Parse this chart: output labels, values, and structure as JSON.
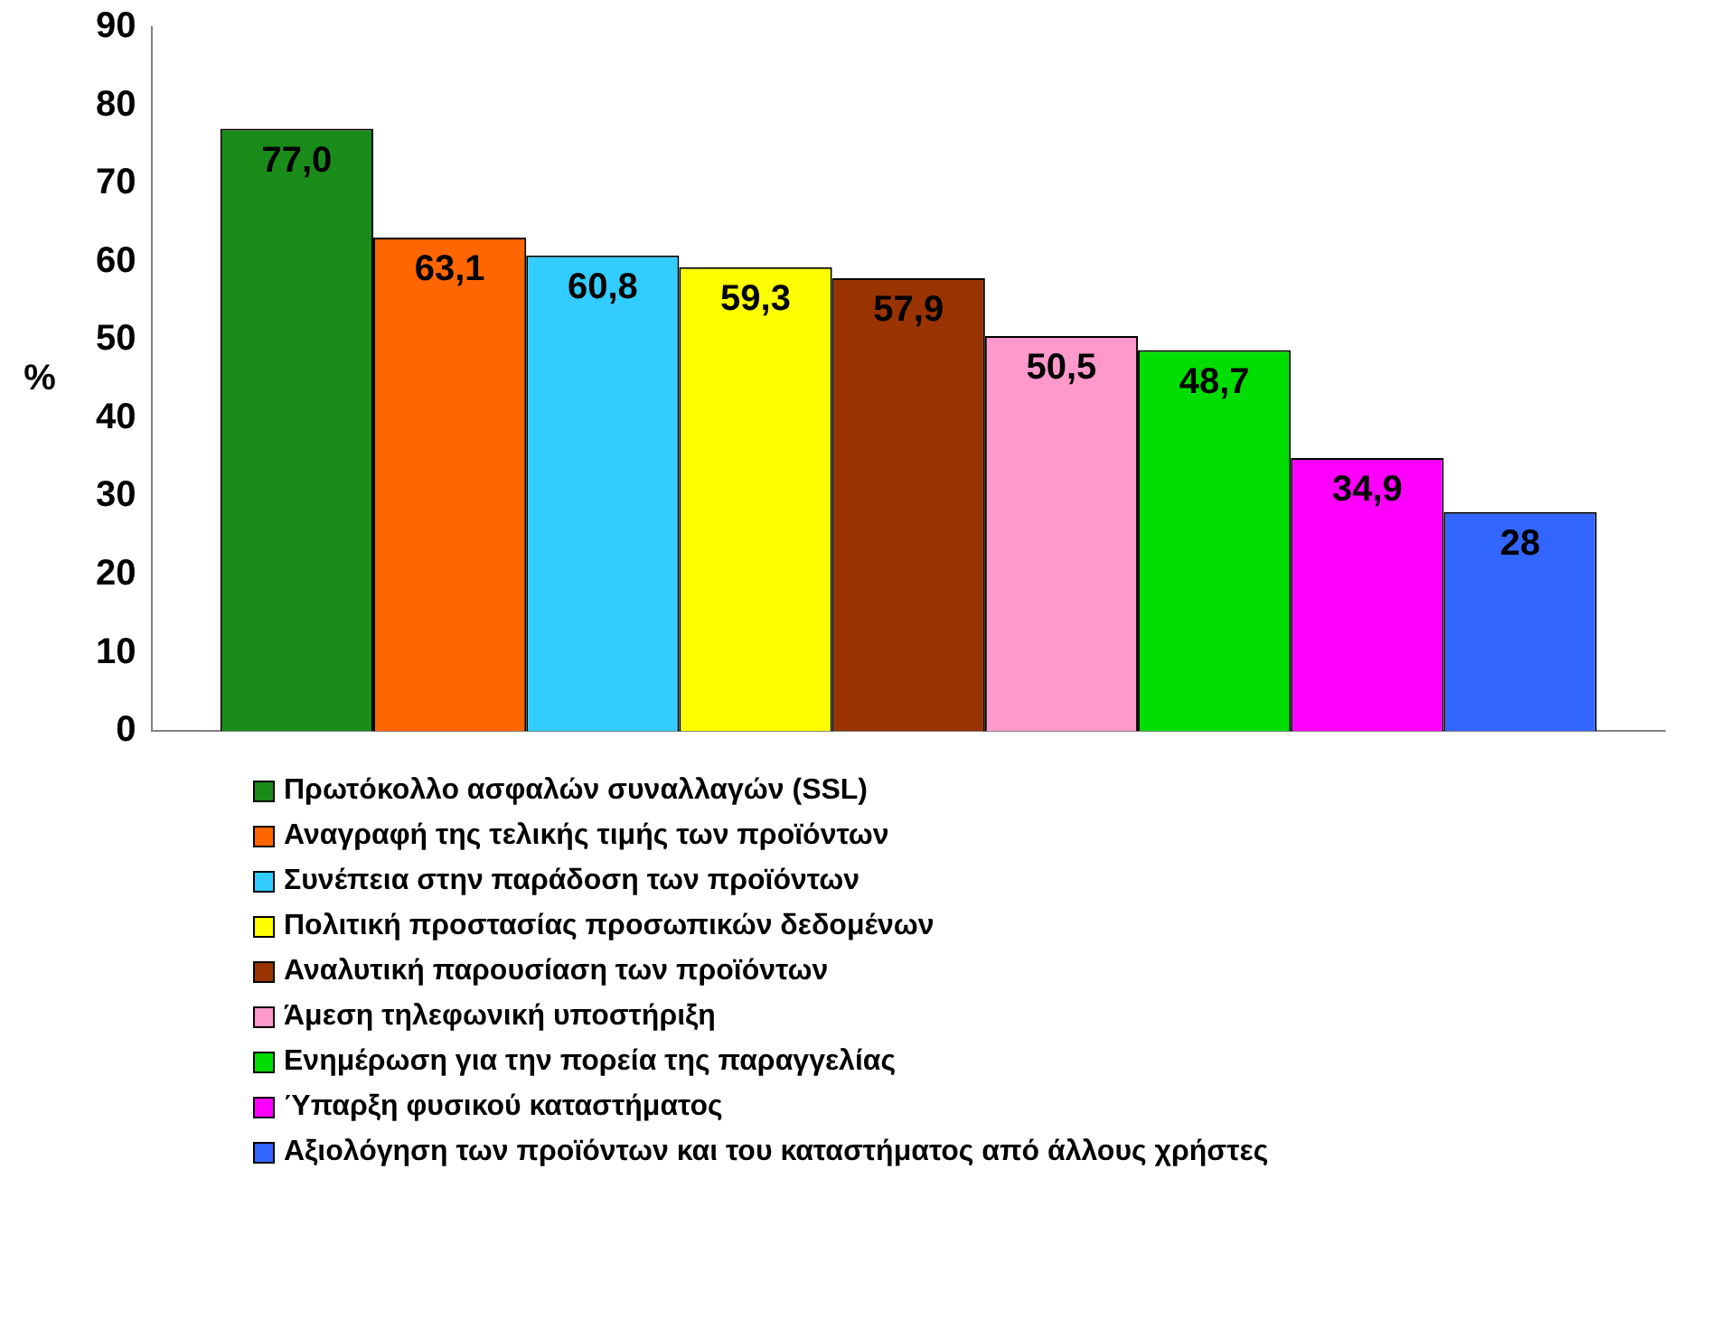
{
  "chart_data": {
    "type": "bar",
    "ylabel": "%",
    "categories": [
      null
    ],
    "series": [
      {
        "name": "Πρωτόκολλο ασφαλών συναλλαγών (SSL)",
        "color": "#1a8c1a",
        "values": [
          77.0
        ],
        "value_labels": [
          "77,0"
        ]
      },
      {
        "name": "Αναγραφή της τελικής τιμής των προϊόντων",
        "color": "#ff6600",
        "values": [
          63.1
        ],
        "value_labels": [
          "63,1"
        ]
      },
      {
        "name": "Συνέπεια στην παράδοση των προϊόντων",
        "color": "#33ccff",
        "values": [
          60.8
        ],
        "value_labels": [
          "60,8"
        ]
      },
      {
        "name": "Πολιτική προστασίας προσωπικών δεδομένων",
        "color": "#ffff00",
        "values": [
          59.3
        ],
        "value_labels": [
          "59,3"
        ]
      },
      {
        "name": "Αναλυτική παρουσίαση των προϊόντων",
        "color": "#993300",
        "values": [
          57.9
        ],
        "value_labels": [
          "57,9"
        ]
      },
      {
        "name": "Άμεση τηλεφωνική υποστήριξη",
        "color": "#ff99cc",
        "values": [
          50.5
        ],
        "value_labels": [
          "50,5"
        ]
      },
      {
        "name": "Ενημέρωση για την πορεία της παραγγελίας",
        "color": "#00dd00",
        "values": [
          48.7
        ],
        "value_labels": [
          "48,7"
        ]
      },
      {
        "name": "Ύπαρξη φυσικού καταστήματος",
        "color": "#ff00ff",
        "values": [
          34.9
        ],
        "value_labels": [
          "34,9"
        ]
      },
      {
        "name": "Αξιολόγηση των προϊόντων και του καταστήματος από άλλους χρήστες",
        "color": "#3366ff",
        "values": [
          28
        ],
        "value_labels": [
          "28"
        ]
      }
    ],
    "ylim": [
      0,
      90
    ],
    "yticks": [
      0,
      10,
      20,
      30,
      40,
      50,
      60,
      70,
      80,
      90
    ],
    "grid": false,
    "legend": "bottom"
  }
}
